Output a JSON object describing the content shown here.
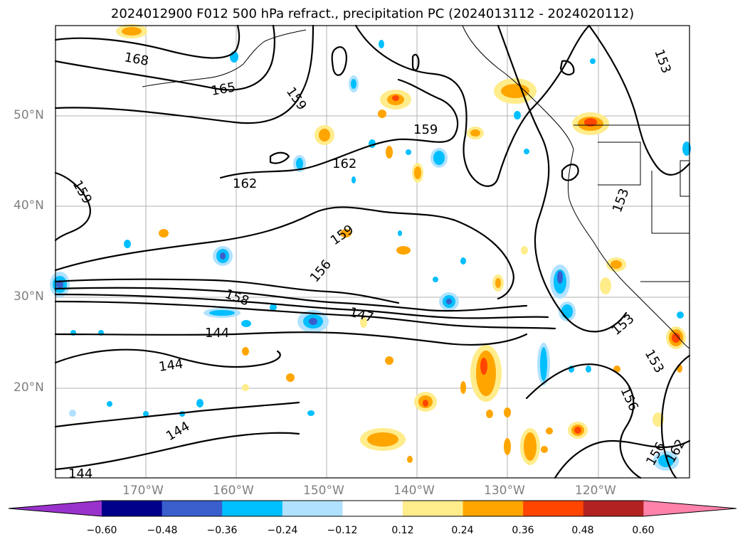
{
  "title": "2024012900 F012 500 hPa refract., precipitation PC (2024013112 - 2024020112)",
  "map": {
    "lat_labels": [
      "50°N",
      "40°N",
      "30°N",
      "20°N"
    ],
    "lon_labels": [
      "170°W",
      "160°W",
      "150°W",
      "140°W",
      "130°W",
      "120°W"
    ],
    "contour_labels": [
      "168",
      "165",
      "159",
      "159",
      "162",
      "162",
      "159",
      "159",
      "156",
      "153",
      "158",
      "147",
      "144",
      "144",
      "144",
      "144",
      "153",
      "153",
      "156",
      "153",
      "156",
      "162"
    ],
    "colors": {
      "coastline": "#000000",
      "grid": "#b0b0b0",
      "contour": "#000000"
    }
  },
  "colorbar": {
    "levels": [
      "−0.60",
      "−0.48",
      "−0.36",
      "−0.24",
      "−0.12",
      "0.12",
      "0.24",
      "0.36",
      "0.48",
      "0.60"
    ],
    "colors": [
      "#9932cc",
      "#00008b",
      "#3a5fcd",
      "#00bfff",
      "#b0e2ff",
      "#ffffff",
      "#ffec8b",
      "#ffa500",
      "#ff4500",
      "#b22222",
      "#ff82ab"
    ]
  }
}
